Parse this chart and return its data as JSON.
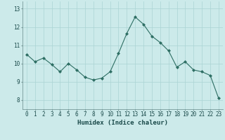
{
  "x": [
    0,
    1,
    2,
    3,
    4,
    5,
    6,
    7,
    8,
    9,
    10,
    11,
    12,
    13,
    14,
    15,
    16,
    17,
    18,
    19,
    20,
    21,
    22,
    23
  ],
  "y": [
    10.5,
    10.1,
    10.3,
    9.95,
    9.55,
    10.0,
    9.65,
    9.25,
    9.1,
    9.2,
    9.55,
    10.55,
    11.65,
    12.55,
    12.15,
    11.5,
    11.15,
    10.7,
    9.8,
    10.1,
    9.65,
    9.55,
    9.35,
    8.1
  ],
  "line_color": "#2d6e63",
  "marker": "D",
  "marker_size": 2.0,
  "bg_color": "#cceaea",
  "grid_color": "#aad4d4",
  "xlabel": "Humidex (Indice chaleur)",
  "ylim": [
    7.5,
    13.4
  ],
  "xlim": [
    -0.5,
    23.5
  ],
  "yticks": [
    8,
    9,
    10,
    11,
    12,
    13
  ],
  "xticks": [
    0,
    1,
    2,
    3,
    4,
    5,
    6,
    7,
    8,
    9,
    10,
    11,
    12,
    13,
    14,
    15,
    16,
    17,
    18,
    19,
    20,
    21,
    22,
    23
  ],
  "font_color": "#1a4a4a",
  "tick_fontsize": 5.5,
  "label_fontsize": 6.5
}
